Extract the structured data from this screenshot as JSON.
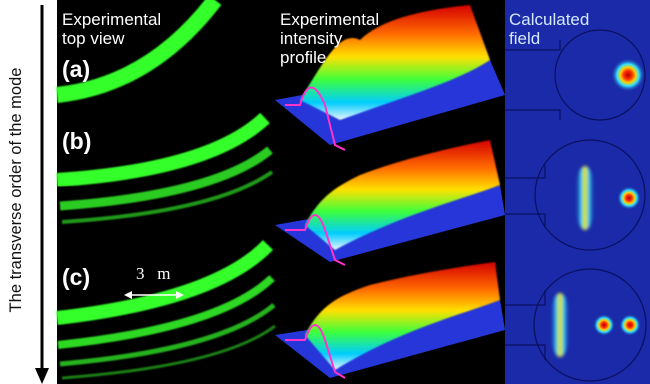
{
  "y_axis_label": "The transverse order of the mode",
  "columns": [
    {
      "title_line1": "Experimental",
      "title_line2": "top view"
    },
    {
      "title_line1": "Experimental",
      "title_line2": "intensity",
      "title_line3": "profile"
    },
    {
      "title_line1": "Calculated",
      "title_line2": "field"
    }
  ],
  "rows": [
    {
      "label": "(a)"
    },
    {
      "label": "(b)"
    },
    {
      "label": "(c)"
    }
  ],
  "scale_bar": "3   m",
  "colors": {
    "green": "#35ff2a",
    "panel_bg": "#000000",
    "field_bg": "#1a2aa8",
    "surface_base": "#2233cc"
  }
}
